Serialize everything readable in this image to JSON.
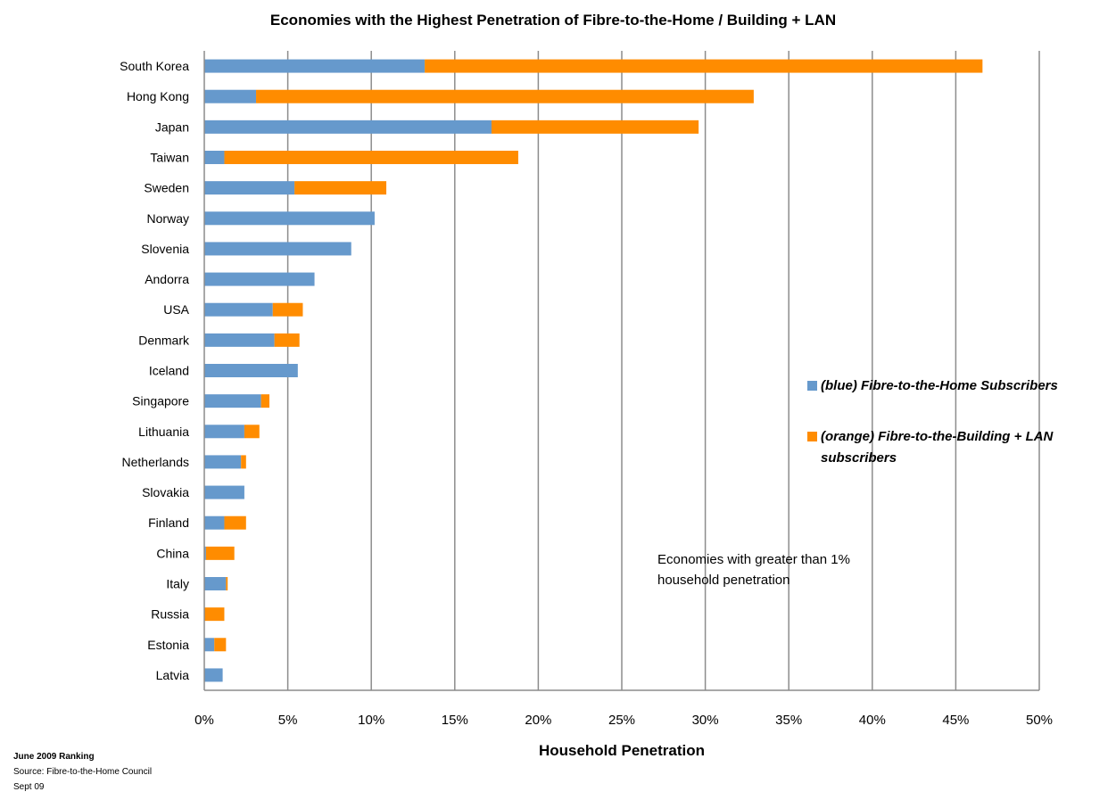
{
  "chart_data": {
    "type": "bar",
    "orientation": "horizontal",
    "stacked": true,
    "title": "Economies with the Highest Penetration of Fibre-to-the-Home / Building + LAN",
    "xlabel": "Household Penetration",
    "ylabel": "",
    "xlim": [
      0,
      50
    ],
    "tick_values": [
      0,
      5,
      10,
      15,
      20,
      25,
      30,
      35,
      40,
      45,
      50
    ],
    "tick_labels": [
      "0%",
      "5%",
      "10%",
      "15%",
      "20%",
      "25%",
      "30%",
      "35%",
      "40%",
      "45%",
      "50%"
    ],
    "grid": true,
    "categories": [
      "South Korea",
      "Hong Kong",
      "Japan",
      "Taiwan",
      "Sweden",
      "Norway",
      "Slovenia",
      "Andorra",
      "USA",
      "Denmark",
      "Iceland",
      "Singapore",
      "Lithuania",
      "Netherlands",
      "Slovakia",
      "Finland",
      "China",
      "Italy",
      "Russia",
      "Estonia",
      "Latvia"
    ],
    "series": [
      {
        "name": "(blue) Fibre-to-the-Home Subscribers",
        "color": "#6699cc",
        "values": [
          13.2,
          3.1,
          17.2,
          1.2,
          5.4,
          10.2,
          8.8,
          6.6,
          4.1,
          4.2,
          5.6,
          3.4,
          2.4,
          2.2,
          2.4,
          1.2,
          0.1,
          1.3,
          0.0,
          0.6,
          1.1
        ]
      },
      {
        "name": "(orange) Fibre-to-the-Building + LAN subscribers",
        "color": "#ff8c00",
        "values": [
          33.4,
          29.8,
          12.4,
          17.6,
          5.5,
          0.0,
          0.0,
          0.0,
          1.8,
          1.5,
          0.0,
          0.5,
          0.9,
          0.3,
          0.0,
          1.3,
          1.7,
          0.1,
          1.2,
          0.7,
          0.0
        ]
      }
    ],
    "legend_position": "right",
    "annotation": [
      "Economies with greater than 1%",
      "household penetration"
    ]
  },
  "footer": {
    "ranking": "June 2009 Ranking",
    "source": "Source: Fibre-to-the-Home Council",
    "date": "Sept 09"
  }
}
